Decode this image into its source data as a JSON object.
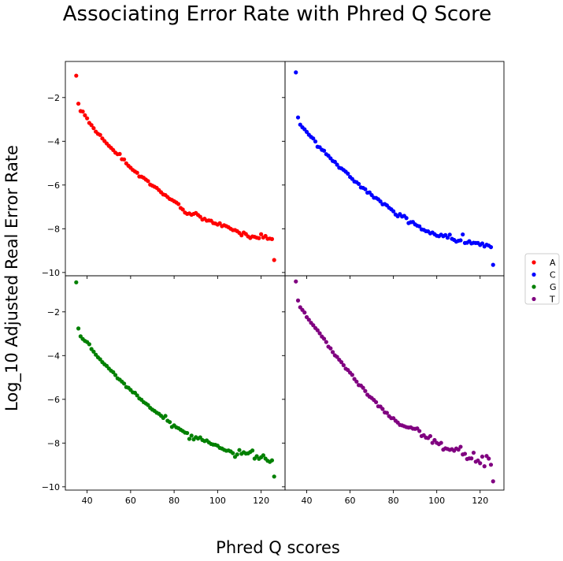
{
  "figure": {
    "title": "Associating Error Rate with Phred Q Score",
    "ylabel": "Log_10 Adjusted Real Error Rate",
    "xlabel": "Phred Q scores"
  },
  "chart_data": {
    "type": "scatter",
    "layout": "2x2 grid, shared axes",
    "xlim": [
      30,
      131
    ],
    "ylim": [
      -10.15,
      -0.35
    ],
    "xticks": [
      40,
      60,
      80,
      100,
      120
    ],
    "yticks": [
      -10,
      -8,
      -6,
      -4,
      -2
    ],
    "grid": false,
    "legend_position": "right",
    "series": [
      {
        "name": "A",
        "color": "#ff0000",
        "panel": "top-left",
        "x": [
          35,
          36,
          37,
          38,
          39,
          40,
          41,
          42,
          43,
          44,
          45,
          46,
          47,
          48,
          49,
          50,
          51,
          52,
          53,
          54,
          55,
          56,
          57,
          58,
          59,
          60,
          61,
          62,
          63,
          64,
          65,
          66,
          67,
          68,
          69,
          70,
          71,
          72,
          73,
          74,
          75,
          76,
          77,
          78,
          79,
          80,
          81,
          82,
          83,
          84,
          85,
          86,
          87,
          88,
          89,
          90,
          91,
          92,
          93,
          94,
          95,
          96,
          97,
          98,
          99,
          100,
          101,
          102,
          103,
          104,
          105,
          106,
          107,
          108,
          109,
          110,
          111,
          112,
          113,
          114,
          115,
          116,
          117,
          118,
          119,
          120,
          121,
          122,
          123,
          124,
          125,
          126
        ],
        "y": [
          -1.0,
          -2.28,
          -2.62,
          -2.64,
          -2.81,
          -2.95,
          -3.16,
          -3.26,
          -3.4,
          -3.56,
          -3.66,
          -3.71,
          -3.87,
          -3.99,
          -4.1,
          -4.21,
          -4.3,
          -4.4,
          -4.52,
          -4.59,
          -4.58,
          -4.82,
          -4.83,
          -5.01,
          -5.12,
          -5.21,
          -5.31,
          -5.38,
          -5.44,
          -5.61,
          -5.62,
          -5.67,
          -5.75,
          -5.82,
          -5.98,
          -6.03,
          -6.08,
          -6.13,
          -6.23,
          -6.33,
          -6.43,
          -6.46,
          -6.55,
          -6.64,
          -6.68,
          -6.74,
          -6.8,
          -6.87,
          -7.05,
          -7.12,
          -7.26,
          -7.32,
          -7.3,
          -7.36,
          -7.32,
          -7.28,
          -7.37,
          -7.45,
          -7.58,
          -7.54,
          -7.63,
          -7.62,
          -7.63,
          -7.74,
          -7.76,
          -7.81,
          -7.75,
          -7.88,
          -7.84,
          -7.88,
          -7.93,
          -8.0,
          -8.06,
          -8.06,
          -8.11,
          -8.19,
          -8.3,
          -8.17,
          -8.24,
          -8.35,
          -8.42,
          -8.35,
          -8.37,
          -8.41,
          -8.43,
          -8.25,
          -8.4,
          -8.33,
          -8.46,
          -8.45,
          -8.47,
          -9.43
        ]
      },
      {
        "name": "C",
        "color": "#0000ff",
        "panel": "top-right",
        "x": [
          35,
          36,
          37,
          38,
          39,
          40,
          41,
          42,
          43,
          44,
          45,
          46,
          47,
          48,
          49,
          50,
          51,
          52,
          53,
          54,
          55,
          56,
          57,
          58,
          59,
          60,
          61,
          62,
          63,
          64,
          65,
          66,
          67,
          68,
          69,
          70,
          71,
          72,
          73,
          74,
          75,
          76,
          77,
          78,
          79,
          80,
          81,
          82,
          83,
          84,
          85,
          86,
          87,
          88,
          89,
          90,
          91,
          92,
          93,
          94,
          95,
          96,
          97,
          98,
          99,
          100,
          101,
          102,
          103,
          104,
          105,
          106,
          107,
          108,
          109,
          110,
          111,
          112,
          113,
          114,
          115,
          116,
          117,
          118,
          119,
          120,
          121,
          122,
          123,
          124,
          125,
          126
        ],
        "y": [
          -0.85,
          -2.91,
          -3.24,
          -3.36,
          -3.45,
          -3.57,
          -3.7,
          -3.8,
          -3.87,
          -4.01,
          -4.25,
          -4.27,
          -4.39,
          -4.43,
          -4.59,
          -4.66,
          -4.78,
          -4.9,
          -4.94,
          -5.07,
          -5.21,
          -5.24,
          -5.31,
          -5.39,
          -5.48,
          -5.63,
          -5.72,
          -5.84,
          -5.87,
          -5.95,
          -6.11,
          -6.13,
          -6.19,
          -6.35,
          -6.34,
          -6.46,
          -6.58,
          -6.59,
          -6.65,
          -6.75,
          -6.88,
          -6.87,
          -6.93,
          -7.04,
          -7.11,
          -7.2,
          -7.35,
          -7.43,
          -7.33,
          -7.44,
          -7.41,
          -7.51,
          -7.74,
          -7.7,
          -7.69,
          -7.8,
          -7.86,
          -7.89,
          -8.03,
          -8.05,
          -8.11,
          -8.12,
          -8.21,
          -8.17,
          -8.25,
          -8.32,
          -8.34,
          -8.27,
          -8.34,
          -8.29,
          -8.41,
          -8.27,
          -8.46,
          -8.51,
          -8.59,
          -8.55,
          -8.53,
          -8.26,
          -8.65,
          -8.64,
          -8.57,
          -8.67,
          -8.64,
          -8.65,
          -8.65,
          -8.74,
          -8.67,
          -8.81,
          -8.73,
          -8.77,
          -8.84,
          -9.65
        ]
      },
      {
        "name": "G",
        "color": "#008000",
        "panel": "bottom-left",
        "x": [
          35,
          36,
          37,
          38,
          39,
          40,
          41,
          42,
          43,
          44,
          45,
          46,
          47,
          48,
          49,
          50,
          51,
          52,
          53,
          54,
          55,
          56,
          57,
          58,
          59,
          60,
          61,
          62,
          63,
          64,
          65,
          66,
          67,
          68,
          69,
          70,
          71,
          72,
          73,
          74,
          75,
          76,
          77,
          78,
          79,
          80,
          81,
          82,
          83,
          84,
          85,
          86,
          87,
          88,
          89,
          90,
          91,
          92,
          93,
          94,
          95,
          96,
          97,
          98,
          99,
          100,
          101,
          102,
          103,
          104,
          105,
          106,
          107,
          108,
          109,
          110,
          111,
          112,
          113,
          114,
          115,
          116,
          117,
          118,
          119,
          120,
          121,
          122,
          123,
          124,
          125,
          126
        ],
        "y": [
          -0.65,
          -2.76,
          -3.12,
          -3.24,
          -3.33,
          -3.38,
          -3.48,
          -3.7,
          -3.82,
          -3.96,
          -4.08,
          -4.17,
          -4.3,
          -4.4,
          -4.47,
          -4.59,
          -4.69,
          -4.76,
          -4.89,
          -5.04,
          -5.1,
          -5.19,
          -5.28,
          -5.44,
          -5.47,
          -5.57,
          -5.68,
          -5.7,
          -5.82,
          -5.96,
          -6.02,
          -6.13,
          -6.19,
          -6.26,
          -6.39,
          -6.47,
          -6.53,
          -6.61,
          -6.66,
          -6.75,
          -6.85,
          -6.76,
          -6.98,
          -7.04,
          -7.26,
          -7.19,
          -7.28,
          -7.32,
          -7.39,
          -7.45,
          -7.52,
          -7.54,
          -7.81,
          -7.66,
          -7.83,
          -7.73,
          -7.79,
          -7.74,
          -7.86,
          -7.91,
          -7.88,
          -7.97,
          -8.04,
          -8.07,
          -8.08,
          -8.12,
          -8.22,
          -8.25,
          -8.31,
          -8.35,
          -8.34,
          -8.38,
          -8.46,
          -8.63,
          -8.52,
          -8.32,
          -8.49,
          -8.42,
          -8.48,
          -8.47,
          -8.41,
          -8.34,
          -8.71,
          -8.6,
          -8.72,
          -8.65,
          -8.56,
          -8.71,
          -8.81,
          -8.86,
          -8.79,
          -9.53
        ]
      },
      {
        "name": "T",
        "color": "#800080",
        "panel": "bottom-right",
        "x": [
          35,
          36,
          37,
          38,
          39,
          40,
          41,
          42,
          43,
          44,
          45,
          46,
          47,
          48,
          49,
          50,
          51,
          52,
          53,
          54,
          55,
          56,
          57,
          58,
          59,
          60,
          61,
          62,
          63,
          64,
          65,
          66,
          67,
          68,
          69,
          70,
          71,
          72,
          73,
          74,
          75,
          76,
          77,
          78,
          79,
          80,
          81,
          82,
          83,
          84,
          85,
          86,
          87,
          88,
          89,
          90,
          91,
          92,
          93,
          94,
          95,
          96,
          97,
          98,
          99,
          100,
          101,
          102,
          103,
          104,
          105,
          106,
          107,
          108,
          109,
          110,
          111,
          112,
          113,
          114,
          115,
          116,
          117,
          118,
          119,
          120,
          121,
          122,
          123,
          124,
          125,
          126
        ],
        "y": [
          -0.61,
          -1.48,
          -1.79,
          -1.91,
          -2.03,
          -2.24,
          -2.36,
          -2.5,
          -2.61,
          -2.74,
          -2.84,
          -2.98,
          -3.13,
          -3.23,
          -3.38,
          -3.59,
          -3.67,
          -3.84,
          -3.99,
          -4.06,
          -4.19,
          -4.3,
          -4.44,
          -4.6,
          -4.66,
          -4.78,
          -4.88,
          -5.07,
          -5.19,
          -5.35,
          -5.37,
          -5.47,
          -5.62,
          -5.79,
          -5.88,
          -5.94,
          -6.03,
          -6.13,
          -6.32,
          -6.33,
          -6.44,
          -6.6,
          -6.62,
          -6.77,
          -6.86,
          -6.86,
          -6.98,
          -7.06,
          -7.17,
          -7.19,
          -7.23,
          -7.27,
          -7.29,
          -7.28,
          -7.34,
          -7.35,
          -7.33,
          -7.45,
          -7.68,
          -7.64,
          -7.75,
          -7.77,
          -7.68,
          -7.99,
          -7.86,
          -7.99,
          -8.05,
          -7.99,
          -8.3,
          -8.24,
          -8.27,
          -8.31,
          -8.28,
          -8.35,
          -8.25,
          -8.3,
          -8.17,
          -8.52,
          -8.49,
          -8.73,
          -8.7,
          -8.7,
          -8.44,
          -8.85,
          -8.8,
          -8.92,
          -8.62,
          -9.06,
          -8.59,
          -8.71,
          -8.99,
          -9.75
        ]
      }
    ]
  }
}
